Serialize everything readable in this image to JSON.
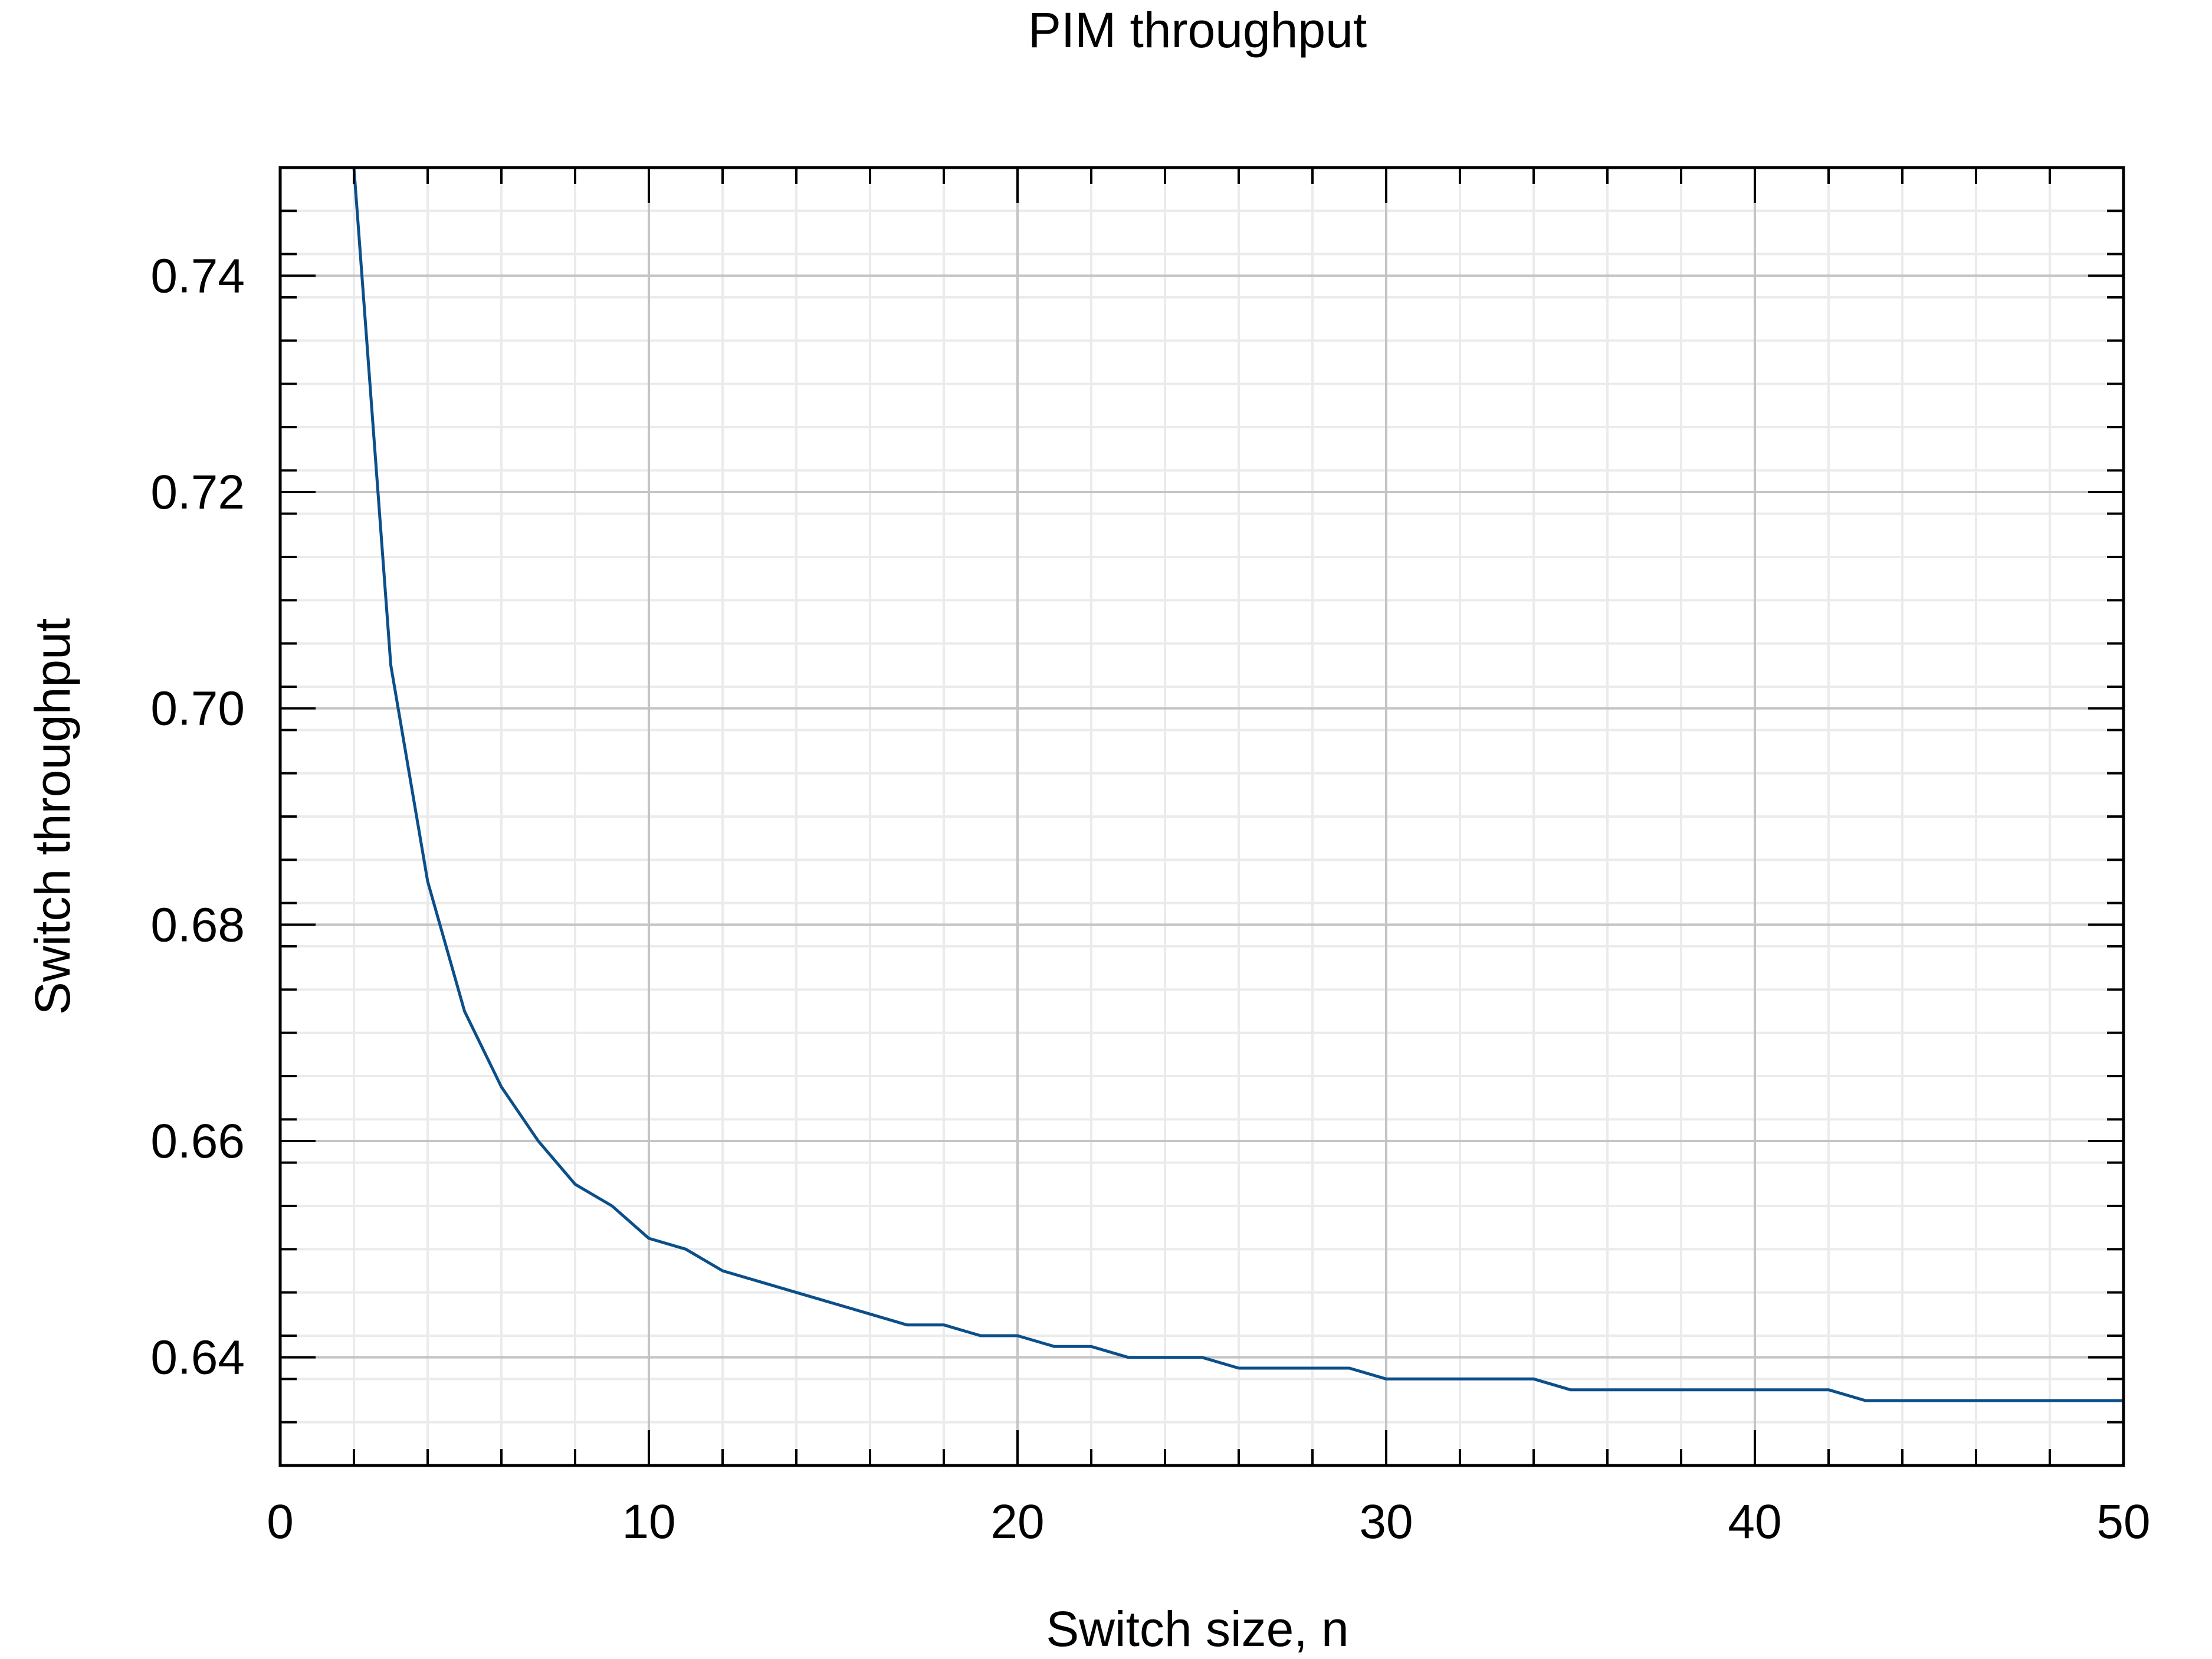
{
  "chart_data": {
    "type": "line",
    "title": "PIM throughput",
    "xlabel": "Switch size, n",
    "ylabel": "Switch throughput",
    "xlim": [
      0,
      50
    ],
    "ylim": [
      0.63,
      0.75
    ],
    "xticks": [
      0,
      10,
      20,
      30,
      40,
      50
    ],
    "xtick_labels": [
      "0",
      "10",
      "20",
      "30",
      "40",
      "50"
    ],
    "yticks": [
      0.64,
      0.66,
      0.68,
      0.7,
      0.72,
      0.74
    ],
    "ytick_labels": [
      "0.64",
      "0.66",
      "0.68",
      "0.70",
      "0.72",
      "0.74"
    ],
    "x_minor_step": 2,
    "y_minor_step": 0.004,
    "grid": true,
    "series": [
      {
        "color": "#0b4f8a",
        "x": [
          2,
          3,
          4,
          5,
          6,
          7,
          8,
          9,
          10,
          11,
          12,
          13,
          14,
          15,
          16,
          17,
          18,
          19,
          20,
          21,
          22,
          23,
          24,
          25,
          26,
          27,
          28,
          29,
          30,
          31,
          32,
          33,
          34,
          35,
          36,
          37,
          38,
          39,
          40,
          41,
          42,
          43,
          44,
          45,
          46,
          47,
          48,
          49,
          50
        ],
        "y": [
          0.75,
          0.704,
          0.684,
          0.672,
          0.665,
          0.66,
          0.656,
          0.654,
          0.651,
          0.65,
          0.648,
          0.647,
          0.646,
          0.645,
          0.644,
          0.643,
          0.643,
          0.642,
          0.642,
          0.641,
          0.641,
          0.64,
          0.64,
          0.64,
          0.639,
          0.639,
          0.639,
          0.639,
          0.638,
          0.638,
          0.638,
          0.638,
          0.638,
          0.637,
          0.637,
          0.637,
          0.637,
          0.637,
          0.637,
          0.637,
          0.637,
          0.636,
          0.636,
          0.636,
          0.636,
          0.636,
          0.636,
          0.636,
          0.636
        ]
      }
    ]
  }
}
